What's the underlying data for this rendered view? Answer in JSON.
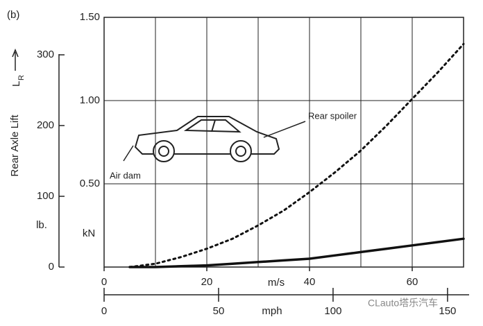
{
  "chart_data": {
    "type": "line",
    "panel_label": "(b)",
    "y_axis_label": "Rear Axle Lift",
    "y_symbol": "L",
    "y_symbol_sub": "R",
    "y_unit": "kN",
    "y2_unit": "lb.",
    "x_unit": "m/s",
    "x2_unit": "mph",
    "annotations": [
      "Air dam",
      "Rear spoiler"
    ],
    "watermark": "CLauto塔乐汽车",
    "x": [
      5,
      10,
      15,
      20,
      25,
      30,
      35,
      40,
      45,
      50,
      55,
      60,
      65,
      70
    ],
    "series": [
      {
        "style": "dotted",
        "color": "#111111",
        "values": [
          0,
          0.02,
          0.06,
          0.11,
          0.17,
          0.25,
          0.34,
          0.45,
          0.57,
          0.7,
          0.85,
          1.01,
          1.17,
          1.34
        ]
      },
      {
        "style": "solid",
        "color": "#111111",
        "values": [
          0,
          0,
          0.005,
          0.01,
          0.02,
          0.03,
          0.04,
          0.05,
          0.07,
          0.09,
          0.11,
          0.13,
          0.15,
          0.17
        ]
      }
    ],
    "xlim": [
      0,
      70
    ],
    "xticks": [
      0,
      20,
      40,
      60
    ],
    "xgrid": [
      10,
      20,
      30,
      40,
      50,
      60,
      70
    ],
    "x2lim": [
      0,
      157
    ],
    "x2ticks": [
      0,
      50,
      100,
      150
    ],
    "ylim": [
      0,
      1.5
    ],
    "yticks": [
      {
        "value": 0.5,
        "label": "0.50"
      },
      {
        "value": 1.0,
        "label": "1.00"
      },
      {
        "value": 1.5,
        "label": "1.50"
      }
    ],
    "y2lim": [
      0,
      353
    ],
    "y2ticks": [
      0,
      100,
      200,
      300
    ],
    "grid": true
  }
}
